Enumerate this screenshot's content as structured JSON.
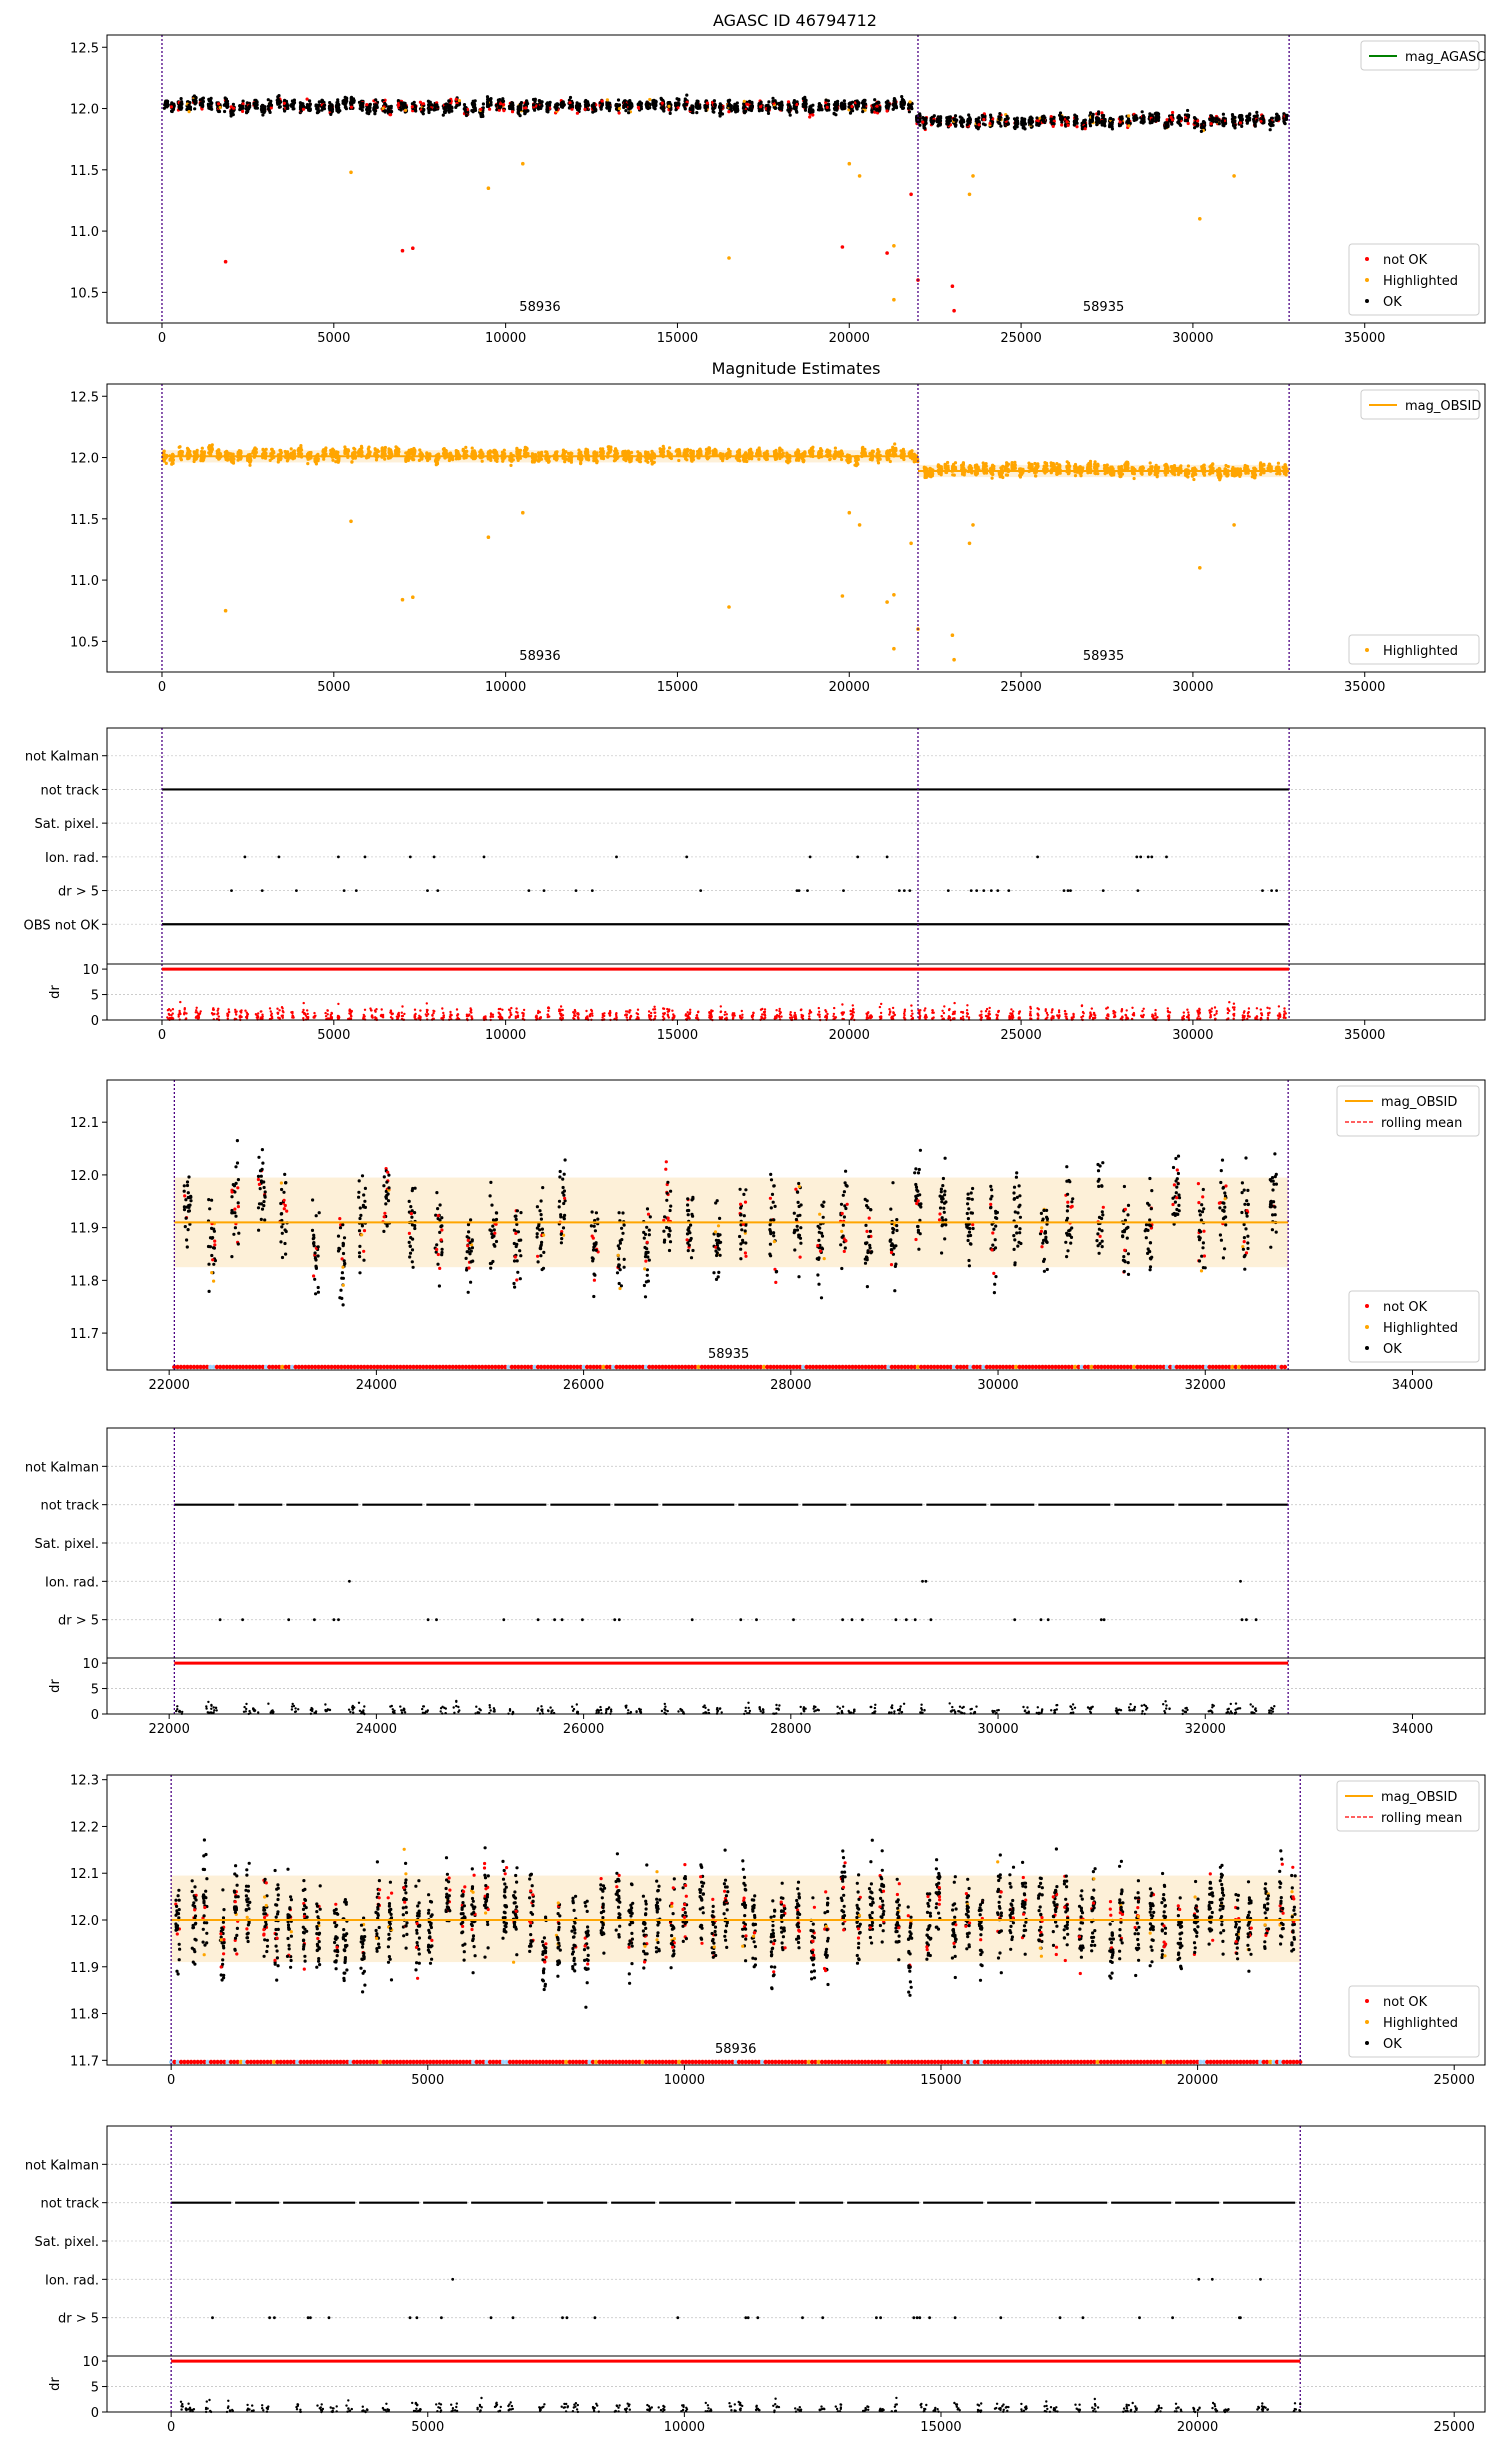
{
  "figure": {
    "title": "AGASC ID 46794712"
  },
  "chart_data": [
    {
      "type": "scatter",
      "title": "AGASC ID 46794712",
      "xlim": [
        -1600,
        38500
      ],
      "ylim": [
        10.25,
        12.6
      ],
      "xticks": [
        0,
        5000,
        10000,
        15000,
        20000,
        25000,
        30000,
        35000
      ],
      "yticks": [
        10.5,
        11.0,
        11.5,
        12.0,
        12.5
      ],
      "vlines": [
        0,
        22000,
        32800
      ],
      "obsid_labels": [
        {
          "text": "58936",
          "x": 11000
        },
        {
          "text": "58935",
          "x": 27400
        }
      ],
      "legend_top": [
        {
          "name": "mag_AGASC",
          "color": "#008000",
          "kind": "line"
        }
      ],
      "legend_bottom": [
        {
          "name": "not OK",
          "color": "#ff0000",
          "kind": "dot"
        },
        {
          "name": "Highlighted",
          "color": "#ffa500",
          "kind": "dot"
        },
        {
          "name": "OK",
          "color": "#000000",
          "kind": "dot"
        }
      ],
      "segments": [
        {
          "x0": 0,
          "x1": 22000,
          "mean": 12.02
        },
        {
          "x0": 22000,
          "x1": 32800,
          "mean": 11.9
        }
      ],
      "outliers": [
        {
          "x": 1850,
          "y": 10.75,
          "series": "not OK"
        },
        {
          "x": 7000,
          "y": 10.84,
          "series": "not OK"
        },
        {
          "x": 7300,
          "y": 10.86,
          "series": "not OK"
        },
        {
          "x": 5500,
          "y": 11.48,
          "series": "Highlighted"
        },
        {
          "x": 9500,
          "y": 11.35,
          "series": "Highlighted"
        },
        {
          "x": 10500,
          "y": 11.55,
          "series": "Highlighted"
        },
        {
          "x": 16500,
          "y": 10.78,
          "series": "Highlighted"
        },
        {
          "x": 19800,
          "y": 10.87,
          "series": "not OK"
        },
        {
          "x": 20000,
          "y": 11.55,
          "series": "Highlighted"
        },
        {
          "x": 20300,
          "y": 11.45,
          "series": "Highlighted"
        },
        {
          "x": 21100,
          "y": 10.82,
          "series": "not OK"
        },
        {
          "x": 21300,
          "y": 10.88,
          "series": "Highlighted"
        },
        {
          "x": 21300,
          "y": 10.44,
          "series": "Highlighted"
        },
        {
          "x": 21800,
          "y": 11.3,
          "series": "not OK"
        },
        {
          "x": 22000,
          "y": 10.6,
          "series": "not OK"
        },
        {
          "x": 23000,
          "y": 10.55,
          "series": "not OK"
        },
        {
          "x": 23050,
          "y": 10.35,
          "series": "not OK"
        },
        {
          "x": 23500,
          "y": 11.3,
          "series": "Highlighted"
        },
        {
          "x": 23600,
          "y": 11.45,
          "series": "Highlighted"
        },
        {
          "x": 30200,
          "y": 11.1,
          "series": "Highlighted"
        },
        {
          "x": 31200,
          "y": 11.45,
          "series": "Highlighted"
        }
      ]
    },
    {
      "type": "scatter",
      "title": "Magnitude Estimates",
      "xlim": [
        -1600,
        38500
      ],
      "ylim": [
        10.25,
        12.6
      ],
      "xticks": [
        0,
        5000,
        10000,
        15000,
        20000,
        25000,
        30000,
        35000
      ],
      "yticks": [
        10.5,
        11.0,
        11.5,
        12.0,
        12.5
      ],
      "vlines": [
        0,
        22000,
        32800
      ],
      "obsid_labels": [
        {
          "text": "58936",
          "x": 11000
        },
        {
          "text": "58935",
          "x": 27400
        }
      ],
      "legend_top": [
        {
          "name": "mag_OBSID",
          "color": "#ffa500",
          "kind": "line"
        }
      ],
      "legend_bottom": [
        {
          "name": "Highlighted",
          "color": "#ffa500",
          "kind": "dot"
        }
      ],
      "segments": [
        {
          "x0": 0,
          "x1": 22000,
          "mean": 12.01
        },
        {
          "x0": 22000,
          "x1": 32800,
          "mean": 11.89
        }
      ]
    },
    {
      "type": "flags",
      "xlim": [
        -1600,
        38500
      ],
      "xticks": [
        0,
        5000,
        10000,
        15000,
        20000,
        25000,
        30000,
        35000
      ],
      "categories": [
        "not Kalman",
        "not track",
        "Sat. pixel.",
        "Ion. rad.",
        "dr > 5",
        "OBS not OK"
      ],
      "dr_yticks": [
        0,
        5,
        10
      ],
      "vlines": [
        0,
        22000,
        32800
      ],
      "xmax": 32800
    },
    {
      "type": "scatter",
      "xlim": [
        21400,
        34700
      ],
      "ylim": [
        11.63,
        12.18
      ],
      "xticks": [
        22000,
        24000,
        26000,
        28000,
        30000,
        32000,
        34000
      ],
      "yticks": [
        11.7,
        11.8,
        11.9,
        12.0,
        12.1
      ],
      "vlines": [
        22050,
        32800
      ],
      "obsid_labels": [
        {
          "text": "58935",
          "x": 27400
        }
      ],
      "mean": 11.91,
      "band": [
        11.825,
        11.995
      ],
      "legend_top": [
        {
          "name": "mag_OBSID",
          "color": "#ffa500",
          "kind": "line"
        },
        {
          "name": "rolling mean",
          "color": "#ff0000",
          "kind": "dash"
        }
      ],
      "legend_bottom": [
        {
          "name": "not OK",
          "color": "#ff0000",
          "kind": "dot"
        },
        {
          "name": "Highlighted",
          "color": "#ffa500",
          "kind": "dot"
        },
        {
          "name": "OK",
          "color": "#000000",
          "kind": "dot"
        }
      ]
    },
    {
      "type": "flags",
      "xlim": [
        21400,
        34700
      ],
      "xticks": [
        22000,
        24000,
        26000,
        28000,
        30000,
        32000,
        34000
      ],
      "categories": [
        "not Kalman",
        "not track",
        "Sat. pixel.",
        "Ion. rad.",
        "dr > 5"
      ],
      "dr_yticks": [
        0,
        5,
        10
      ],
      "vlines": [
        22050,
        32800
      ],
      "xmin": 22050,
      "xmax": 32800
    },
    {
      "type": "scatter",
      "xlim": [
        -1250,
        25600
      ],
      "ylim": [
        11.69,
        12.31
      ],
      "xticks": [
        0,
        5000,
        10000,
        15000,
        20000,
        25000
      ],
      "yticks": [
        11.7,
        11.8,
        11.9,
        12.0,
        12.1,
        12.2,
        12.3
      ],
      "vlines": [
        0,
        22000
      ],
      "obsid_labels": [
        {
          "text": "58936",
          "x": 11000
        }
      ],
      "mean": 12.0,
      "band": [
        11.91,
        12.095
      ],
      "legend_top": [
        {
          "name": "mag_OBSID",
          "color": "#ffa500",
          "kind": "line"
        },
        {
          "name": "rolling mean",
          "color": "#ff0000",
          "kind": "dash"
        }
      ],
      "legend_bottom": [
        {
          "name": "not OK",
          "color": "#ff0000",
          "kind": "dot"
        },
        {
          "name": "Highlighted",
          "color": "#ffa500",
          "kind": "dot"
        },
        {
          "name": "OK",
          "color": "#000000",
          "kind": "dot"
        }
      ]
    },
    {
      "type": "flags",
      "xlim": [
        -1250,
        25600
      ],
      "xticks": [
        0,
        5000,
        10000,
        15000,
        20000,
        25000
      ],
      "categories": [
        "not Kalman",
        "not track",
        "Sat. pixel.",
        "Ion. rad.",
        "dr > 5"
      ],
      "dr_yticks": [
        0,
        5,
        10
      ],
      "vlines": [
        0,
        22000
      ],
      "xmin": 0,
      "xmax": 22000
    }
  ],
  "colors": {
    "ok": "#000000",
    "not_ok": "#ff0000",
    "highlighted": "#ffa500",
    "agasc": "#008000",
    "vline": "#4b0082",
    "band": "#fdf0d8"
  },
  "labels": {
    "dr_axis": "dr"
  }
}
